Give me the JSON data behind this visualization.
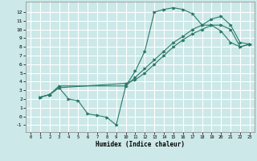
{
  "bg_color": "#cce8e8",
  "grid_color": "#ffffff",
  "line_color": "#2a7a6a",
  "xlim": [
    -0.5,
    23.5
  ],
  "ylim": [
    -1.8,
    13.2
  ],
  "xticks": [
    0,
    1,
    2,
    3,
    4,
    5,
    6,
    7,
    8,
    9,
    10,
    11,
    12,
    13,
    14,
    15,
    16,
    17,
    18,
    19,
    20,
    21,
    22,
    23
  ],
  "yticks": [
    -1,
    0,
    1,
    2,
    3,
    4,
    5,
    6,
    7,
    8,
    9,
    10,
    11,
    12
  ],
  "xlabel": "Humidex (Indice chaleur)",
  "curve1_x": [
    1,
    2,
    3,
    4,
    5,
    6,
    7,
    8,
    9,
    10,
    11,
    12,
    13,
    14,
    15,
    16,
    17,
    18,
    19,
    20,
    21,
    22,
    23
  ],
  "curve1_y": [
    2.2,
    2.5,
    3.3,
    2.0,
    1.8,
    0.3,
    0.1,
    -0.1,
    -1.0,
    3.5,
    5.2,
    7.5,
    12.0,
    12.3,
    12.5,
    12.3,
    11.8,
    10.5,
    10.5,
    9.8,
    8.5,
    8.0,
    8.3
  ],
  "curve2_x": [
    1,
    2,
    3,
    10,
    11,
    12,
    13,
    14,
    15,
    16,
    17,
    18,
    19,
    20,
    21,
    22,
    23
  ],
  "curve2_y": [
    2.2,
    2.5,
    3.5,
    3.5,
    4.5,
    5.5,
    6.5,
    7.5,
    8.5,
    9.2,
    10.0,
    10.5,
    11.2,
    11.5,
    10.5,
    8.5,
    8.3
  ],
  "curve3_x": [
    1,
    2,
    3,
    10,
    11,
    12,
    13,
    14,
    15,
    16,
    17,
    18,
    19,
    20,
    21,
    22,
    23
  ],
  "curve3_y": [
    2.2,
    2.5,
    3.3,
    3.8,
    4.2,
    5.0,
    6.0,
    7.0,
    8.0,
    8.8,
    9.5,
    10.0,
    10.5,
    10.5,
    10.0,
    8.0,
    8.3
  ]
}
